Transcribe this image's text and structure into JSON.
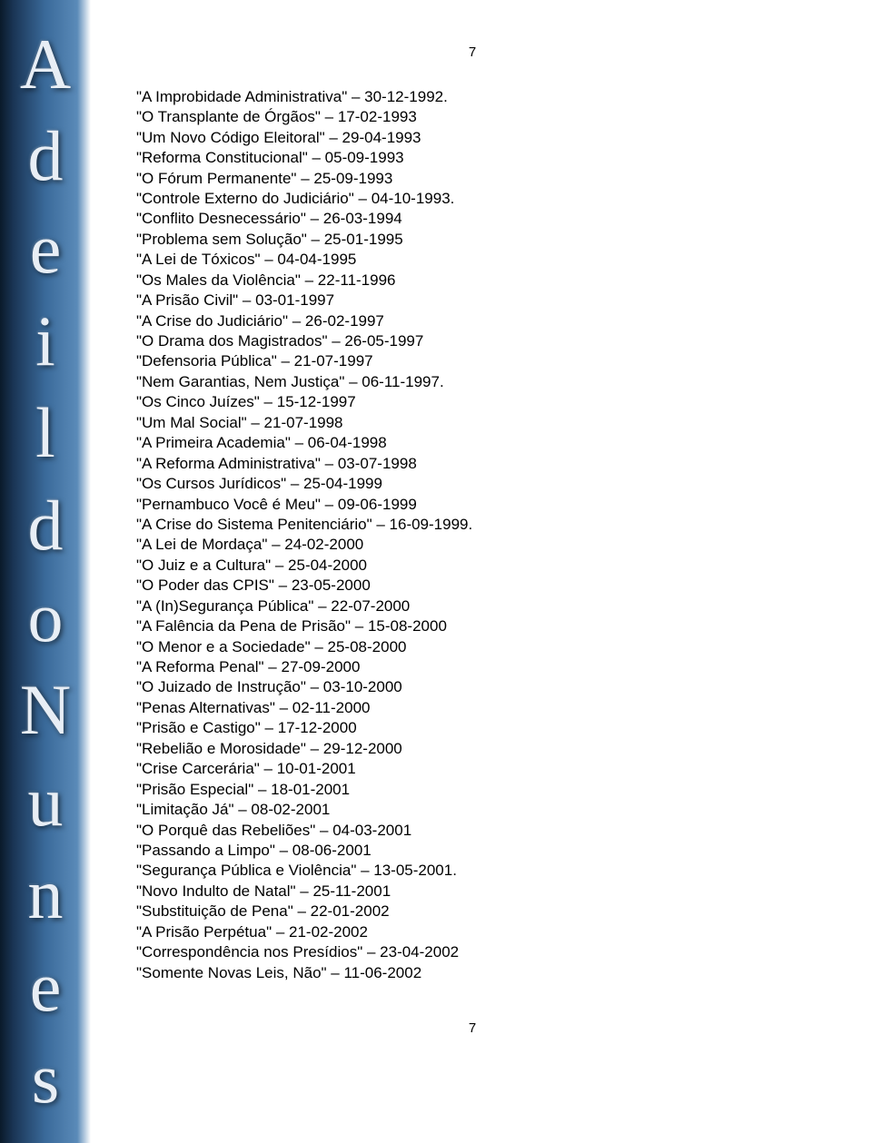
{
  "page_number_top": "7",
  "page_number_bottom": "7",
  "sidebar_letters": [
    "A",
    "d",
    "e",
    "i",
    "l",
    "d",
    "o",
    "N",
    "u",
    "n",
    "e",
    "s"
  ],
  "entries": [
    "\"A Improbidade Administrativa\" – 30-12-1992.",
    "\"O Transplante de Órgãos\" – 17-02-1993",
    "\"Um Novo Código Eleitoral\" – 29-04-1993",
    "\"Reforma Constitucional\" – 05-09-1993",
    "\"O Fórum Permanente\" – 25-09-1993",
    "\"Controle Externo do Judiciário\" – 04-10-1993.",
    "\"Conflito Desnecessário\" – 26-03-1994",
    "\"Problema sem Solução\" – 25-01-1995",
    "\"A Lei de Tóxicos\" – 04-04-1995",
    "\"Os Males da Violência\" – 22-11-1996",
    "\"A Prisão Civil\" – 03-01-1997",
    "\"A Crise do Judiciário\" – 26-02-1997",
    "\"O Drama dos Magistrados\" – 26-05-1997",
    "\"Defensoria Pública\" – 21-07-1997",
    "\"Nem Garantias, Nem Justiça\" – 06-11-1997.",
    "\"Os Cinco Juízes\" – 15-12-1997",
    "\"Um Mal Social\" – 21-07-1998",
    "\"A Primeira Academia\" – 06-04-1998",
    "\"A Reforma Administrativa\" – 03-07-1998",
    "\"Os Cursos Jurídicos\" – 25-04-1999",
    "\"Pernambuco Você é Meu\" – 09-06-1999",
    "\"A Crise do Sistema Penitenciário\" – 16-09-1999.",
    "\"A Lei de Mordaça\" – 24-02-2000",
    "\"O Juiz e a Cultura\" – 25-04-2000",
    "\"O Poder das CPIS\" – 23-05-2000",
    "\"A (In)Segurança Pública\" – 22-07-2000",
    "\"A Falência da Pena de Prisão\" – 15-08-2000",
    "\"O Menor e a Sociedade\" – 25-08-2000",
    "\"A Reforma Penal\" – 27-09-2000",
    "\"O Juizado de Instrução\" – 03-10-2000",
    "\"Penas Alternativas\" – 02-11-2000",
    "\"Prisão e Castigo\" – 17-12-2000",
    "\"Rebelião e Morosidade\" – 29-12-2000",
    "\"Crise Carcerária\" – 10-01-2001",
    "\"Prisão Especial\" – 18-01-2001",
    "\"Limitação Já\" – 08-02-2001",
    "\"O Porquê das Rebeliões\" – 04-03-2001",
    "\"Passando a Limpo\" – 08-06-2001",
    "\"Segurança Pública e Violência\" – 13-05-2001.",
    "\"Novo Indulto de Natal\" – 25-11-2001",
    "\"Substituição de Pena\" – 22-01-2002",
    "\"A Prisão Perpétua\" – 21-02-2002",
    "\"Correspondência nos Presídios\" – 23-04-2002",
    "\"Somente Novas Leis, Não\" – 11-06-2002"
  ],
  "colors": {
    "text": "#000000",
    "background": "#ffffff",
    "sidebar_letter": "#e8eef5"
  },
  "typography": {
    "body_fontsize": 17,
    "pagenum_fontsize": 15,
    "sidebar_fontsize": 78,
    "body_family": "Verdana",
    "sidebar_family": "Times New Roman"
  }
}
